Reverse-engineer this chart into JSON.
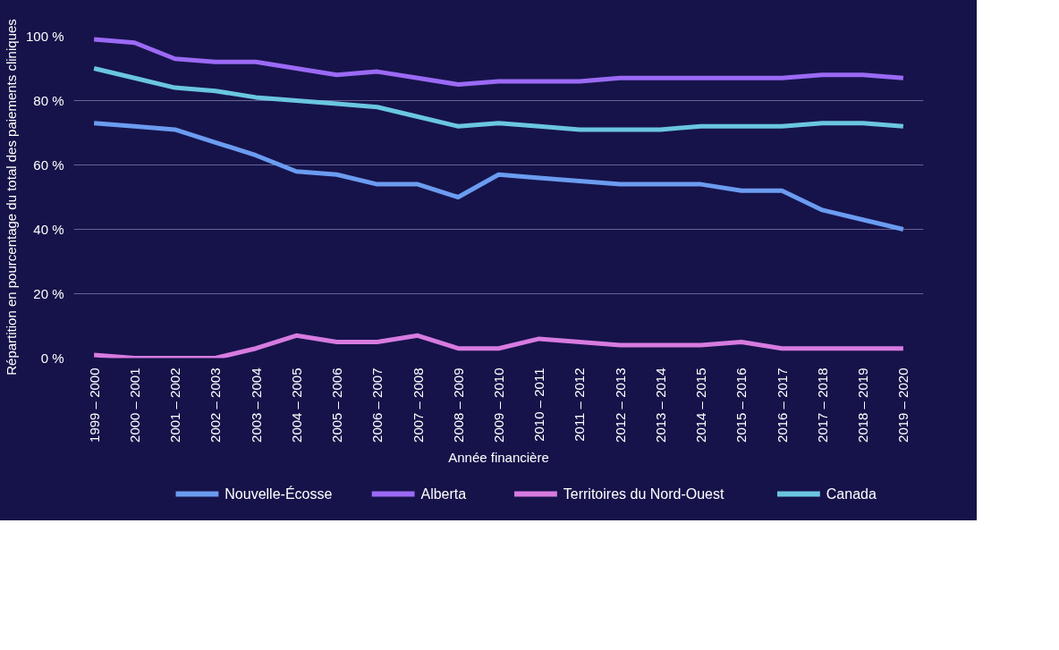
{
  "chart_data": {
    "type": "line",
    "xlabel": "Année financière",
    "ylabel": "Répartition en pourcentage du total des paiements cliniques",
    "categories": [
      "1999 – 2000",
      "2000 – 2001",
      "2001 – 2002",
      "2002 – 2003",
      "2003 – 2004",
      "2004 – 2005",
      "2005 – 2006",
      "2006 – 2007",
      "2007 – 2008",
      "2008 – 2009",
      "2009 – 2010",
      "2010 – 2011",
      "2011 – 2012",
      "2012 – 2013",
      "2013 – 2014",
      "2014 – 2015",
      "2015 – 2016",
      "2016 – 2017",
      "2017 – 2018",
      "2018 – 2019",
      "2019 – 2020"
    ],
    "series": [
      {
        "name": "Nouvelle-Écosse",
        "color": "#6b9cf0",
        "values": [
          73,
          72,
          71,
          67,
          63,
          58,
          57,
          54,
          54,
          50,
          57,
          56,
          55,
          54,
          54,
          54,
          52,
          52,
          46,
          43,
          40
        ]
      },
      {
        "name": "Alberta",
        "color": "#9b6af5",
        "values": [
          99,
          98,
          93,
          92,
          92,
          90,
          88,
          89,
          87,
          85,
          86,
          86,
          86,
          87,
          87,
          87,
          87,
          87,
          88,
          88,
          87
        ]
      },
      {
        "name": "Territoires du Nord-Ouest",
        "color": "#d77be0",
        "values": [
          1,
          0,
          0,
          0,
          3,
          7,
          5,
          5,
          7,
          3,
          3,
          6,
          5,
          4,
          4,
          4,
          5,
          3,
          3,
          3,
          3
        ]
      },
      {
        "name": "Canada",
        "color": "#6ac6e0",
        "values": [
          90,
          87,
          84,
          83,
          81,
          80,
          79,
          78,
          75,
          72,
          73,
          72,
          71,
          71,
          71,
          72,
          72,
          72,
          73,
          73,
          72
        ]
      }
    ],
    "ylim": [
      0,
      100
    ],
    "yticks": [
      {
        "value": 0,
        "label": "0 %"
      },
      {
        "value": 20,
        "label": "20 %"
      },
      {
        "value": 40,
        "label": "40 %"
      },
      {
        "value": 60,
        "label": "60 %"
      },
      {
        "value": 80,
        "label": "80 %"
      },
      {
        "value": 100,
        "label": "100 %"
      }
    ],
    "grid": "y",
    "legend": "bottom",
    "marker": "none",
    "line_style": "solid"
  }
}
